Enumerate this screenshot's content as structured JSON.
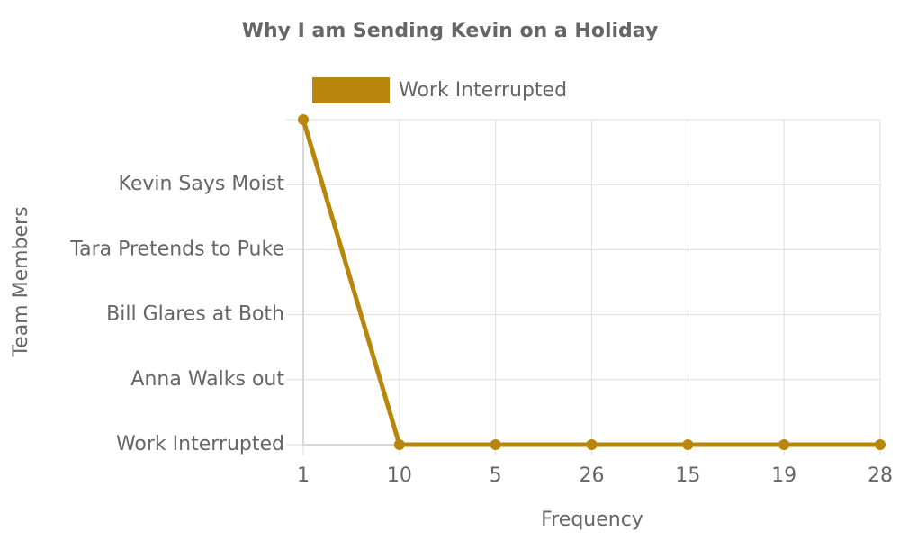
{
  "chart_data": {
    "type": "line",
    "title": "Why I am Sending Kevin on a Holiday",
    "x_label": "Frequency",
    "y_label": "Team Members",
    "categories": [
      "1",
      "10",
      "5",
      "26",
      "15",
      "19",
      "28"
    ],
    "series": [
      {
        "name": "Work Interrupted",
        "color": "#b8860b",
        "values": [
          5,
          0,
          0,
          0,
          0,
          0,
          0
        ]
      }
    ],
    "ylim": [
      0,
      5
    ],
    "yticks": [
      {
        "value": 0,
        "label": "Work Interrupted"
      },
      {
        "value": 1,
        "label": "Anna Walks out"
      },
      {
        "value": 2,
        "label": "Bill Glares at Both"
      },
      {
        "value": 3,
        "label": "Tara Pretends to Puke"
      },
      {
        "value": 4,
        "label": "Kevin Says Moist"
      }
    ],
    "grid": true,
    "legend": "top"
  }
}
